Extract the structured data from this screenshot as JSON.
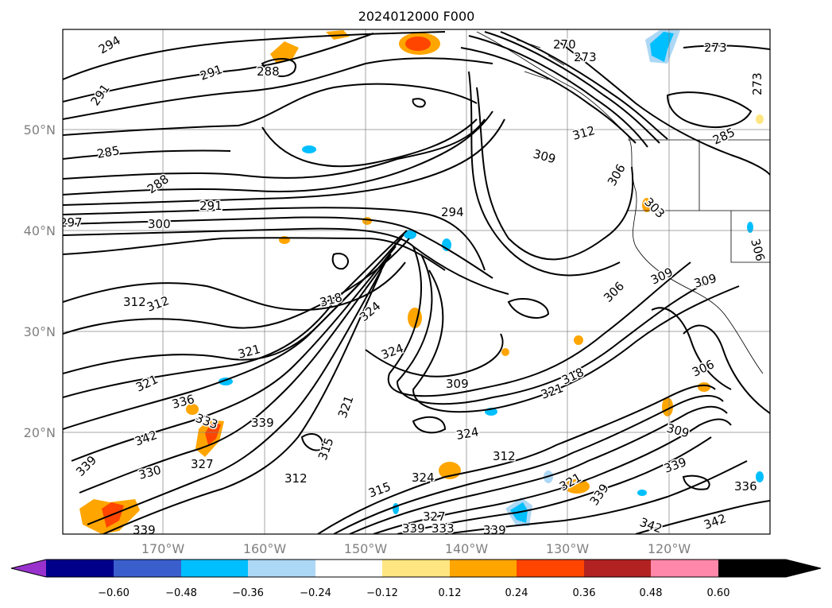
{
  "title": "2024012000 F000",
  "lat_labels": [
    "50°N",
    "40°N",
    "30°N",
    "20°N"
  ],
  "lon_labels": [
    "170°W",
    "160°W",
    "150°W",
    "140°W",
    "130°W",
    "120°W"
  ],
  "colorbar": {
    "ticks": [
      "−0.60",
      "−0.48",
      "−0.36",
      "−0.24",
      "−0.12",
      "0.12",
      "0.24",
      "0.36",
      "0.48",
      "0.60"
    ],
    "colors": [
      "#9932cc",
      "#00008b",
      "#3a5fcd",
      "#00bfff",
      "#add8f5",
      "#ffffff",
      "#ffe680",
      "#ffa500",
      "#ff4500",
      "#b22222",
      "#ff88aa"
    ]
  },
  "contour_labels": {
    "c294a": "294",
    "c291a": "291",
    "c291b": "291",
    "c288a": "288",
    "c285": "285",
    "c288b": "288",
    "c291c": "291",
    "c297": "297",
    "c300": "300",
    "c270": "270",
    "c273a": "273",
    "c273b": "273",
    "c312a": "312",
    "c309a": "309",
    "c306a": "306",
    "c294b": "294",
    "c303": "303",
    "c312b": "312",
    "c312c": "312",
    "c318a": "318",
    "c324a": "324",
    "c321a": "321",
    "c324b": "324",
    "c309b": "309",
    "c321b": "321",
    "c336a": "336",
    "c333": "333",
    "c339a": "339",
    "c342a": "342",
    "c327a": "327",
    "c330": "330",
    "c339b": "339",
    "c315a": "315",
    "c321c": "321",
    "c312d": "312",
    "c324c": "324",
    "c312e": "312",
    "c315b": "315",
    "c324d": "324",
    "c327b": "327",
    "c339c": "339",
    "c333b": "333",
    "c339d": "339",
    "c306b": "306",
    "c309c": "309",
    "c309d": "309",
    "c306c": "306",
    "c318b": "318",
    "c321d": "321",
    "c309e": "309",
    "c306d": "306",
    "c339e": "339",
    "c336b": "336",
    "c339f": "339",
    "c342b": "342",
    "c342c": "342",
    "c306e": "306",
    "c285b": "285",
    "c273c": "273"
  }
}
